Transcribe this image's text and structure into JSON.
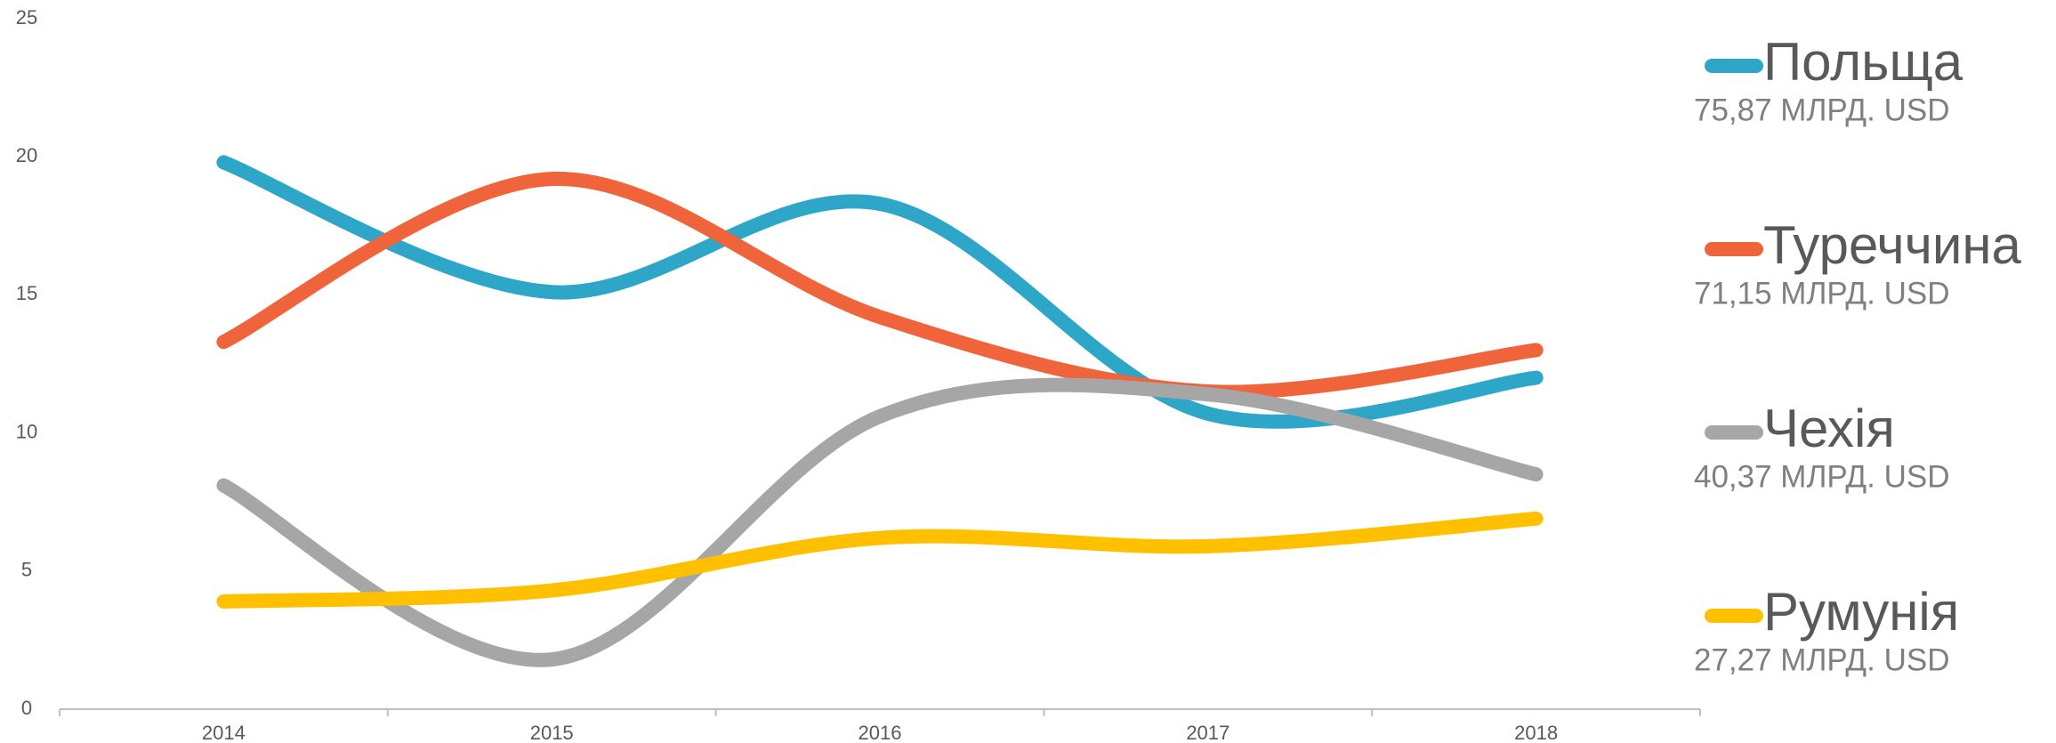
{
  "chart_data": {
    "type": "line",
    "categories": [
      "2014",
      "2015",
      "2016",
      "2017",
      "2018"
    ],
    "series": [
      {
        "name": "Польща",
        "total": "75,87 МЛРД. USD",
        "color": "#2ea6c8",
        "values": [
          19.8,
          15.1,
          18.3,
          10.7,
          12.0
        ]
      },
      {
        "name": "Туреччина",
        "total": "71,15 МЛРД. USD",
        "color": "#f0643c",
        "values": [
          13.3,
          19.2,
          14.2,
          11.5,
          13.0
        ]
      },
      {
        "name": "Чехія",
        "total": "40,37 МЛРД. USD",
        "color": "#a6a6a6",
        "values": [
          8.1,
          1.8,
          10.6,
          11.4,
          8.5
        ]
      },
      {
        "name": "Румунія",
        "total": "27,27 МЛРД. USD",
        "color": "#ffc000",
        "values": [
          3.9,
          4.3,
          6.2,
          5.9,
          6.9
        ]
      }
    ],
    "ylim": [
      0,
      25
    ],
    "yticks": [
      0,
      5,
      10,
      15,
      20,
      25
    ],
    "grid": false,
    "smooth": true,
    "legend": "right"
  }
}
